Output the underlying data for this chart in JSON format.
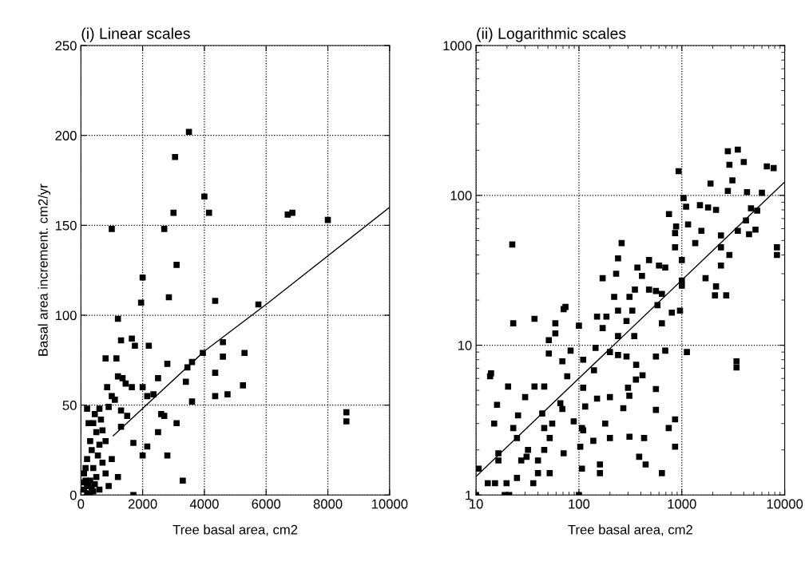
{
  "chart_data": [
    {
      "type": "scatter",
      "title": "(i) Linear scales",
      "xlabel": "Tree basal area, cm2",
      "ylabel": "Basal area increment. cm2/yr",
      "xlim": [
        0,
        10000
      ],
      "ylim": [
        0,
        250
      ],
      "xticks": [
        0,
        2000,
        4000,
        6000,
        8000,
        10000
      ],
      "yticks": [
        0,
        50,
        100,
        150,
        200,
        250
      ],
      "grid": true,
      "marker": "square",
      "series": [
        {
          "color": "#000000",
          "x": [
            3500,
            3050,
            4000,
            4150,
            3000,
            6700,
            6850,
            8000,
            1000,
            2700,
            3100,
            2000,
            1950,
            2850,
            4350,
            5750,
            1200,
            1300,
            1650,
            1750,
            2200,
            4600,
            1150,
            800,
            3950,
            5300,
            2800,
            4600,
            3600,
            3450,
            1200,
            1350,
            1450,
            1650,
            2000,
            4350,
            2500,
            3400,
            5250,
            4350,
            4750,
            2150,
            2350,
            3600,
            1000,
            1100,
            850,
            8600,
            8600,
            200,
            600,
            900,
            1300,
            1500,
            2600,
            2700,
            3100,
            1300,
            2500,
            1700,
            2150,
            2000,
            2800,
            3300,
            1200,
            1700,
            500,
            700,
            400,
            300,
            600,
            800,
            200,
            400,
            500,
            700,
            900,
            100,
            200,
            300,
            100,
            600,
            400,
            200,
            800,
            1000,
            350,
            150,
            250,
            450,
            650,
            550,
            300,
            150,
            250,
            350,
            450,
            100
          ],
          "values": [
            202,
            188,
            166,
            157,
            157,
            156,
            157,
            153,
            148,
            148,
            128,
            121,
            107,
            110,
            108,
            106,
            98,
            86,
            87,
            83,
            83,
            85,
            76,
            76,
            79,
            79,
            73,
            77,
            74,
            71,
            66,
            65,
            62,
            60,
            60,
            68,
            65,
            63,
            61,
            55,
            56,
            55,
            56,
            52,
            55,
            53,
            60,
            46,
            41,
            48,
            48,
            49,
            47,
            44,
            45,
            44,
            40,
            38,
            35,
            29,
            27,
            22,
            22,
            8,
            10,
            0,
            35,
            36,
            40,
            30,
            28,
            30,
            20,
            15,
            10,
            18,
            5,
            3,
            5,
            8,
            12,
            3,
            2,
            1,
            12,
            20,
            25,
            15,
            40,
            45,
            42,
            22,
            0,
            8,
            5,
            4,
            6,
            7
          ]
        },
        {
          "type": "line",
          "color": "#000000",
          "marker": "none",
          "x": [
            1050,
            4000,
            6000,
            10000
          ],
          "values": [
            33,
            80,
            106,
            160
          ]
        }
      ]
    },
    {
      "type": "scatter",
      "title": "(ii) Logarithmic scales",
      "xlabel": "Tree basal area, cm2",
      "log": "xy",
      "xlim": [
        10,
        10000
      ],
      "ylim": [
        1,
        1000
      ],
      "xticks": [
        10,
        100,
        1000,
        10000
      ],
      "yticks": [
        1,
        10,
        100,
        1000
      ],
      "grid": true,
      "marker": "square",
      "series": [
        {
          "color": "#000000",
          "x": [
            2800,
            3500,
            2900,
            4000,
            6700,
            7800,
            930,
            3100,
            2800,
            1900,
            4300,
            6000,
            1040,
            1100,
            750,
            1500,
            1800,
            1150,
            1550,
            2150,
            2400,
            860,
            880,
            1350,
            860,
            1000,
            690,
            2400,
            2900,
            2400,
            3500,
            4200,
            4700,
            5400,
            4500,
            5200,
            8400,
            8400,
            1700,
            2150,
            2100,
            2700,
            1000,
            1000,
            800,
            960,
            640,
            580,
            640,
            260,
            240,
            230,
            170,
            370,
            410,
            480,
            600,
            350,
            480,
            560,
            220,
            310,
            330,
            240,
            290,
            185,
            150,
            170,
            240,
            345,
            240,
            290,
            145,
            100,
            74,
            69,
            51,
            83,
            59,
            77,
            110,
            140,
            200,
            360,
            415,
            560,
            690,
            358,
            300,
            309,
            200,
            150,
            270,
            560,
            560,
            746,
            860,
            860,
            430,
            310,
            200,
            180,
            138,
            110,
            110,
            115,
            107,
            103,
            107,
            160,
            160,
            385,
            445,
            640,
            89,
            69,
            55,
            46,
            52,
            40,
            46,
            32,
            31,
            27.5,
            25,
            23,
            25.6,
            30,
            37,
            44,
            46,
            52,
            66,
            71,
            40,
            36,
            25,
            16.5,
            16.5,
            16,
            15,
            19,
            21,
            19.8,
            13,
            15.3,
            10.6,
            10,
            13.7,
            14,
            20.5,
            23,
            22.5,
            37,
            51,
            59,
            71,
            100,
            3400,
            3400,
            1120
          ],
          "values": [
            197,
            202,
            160,
            167,
            156,
            152,
            145,
            126,
            107,
            120,
            105,
            104,
            96,
            84,
            75,
            86,
            83,
            64,
            58,
            80,
            54,
            56,
            62,
            48,
            45,
            37,
            33,
            45,
            40,
            34,
            58,
            68,
            82,
            79,
            55,
            59,
            45,
            40,
            28,
            24.7,
            21.5,
            21.5,
            27,
            25,
            16.5,
            17,
            22,
            18.5,
            14,
            48,
            38,
            30,
            28,
            33,
            29,
            37,
            34,
            23.5,
            23.5,
            23,
            21,
            21,
            17,
            17,
            14.5,
            15.5,
            15.5,
            13,
            11.5,
            11.5,
            8.6,
            8.4,
            9.6,
            13.5,
            18,
            7.8,
            8.8,
            9.2,
            12,
            6.2,
            8,
            6.8,
            9,
            7.4,
            6.3,
            8.4,
            9.2,
            5.9,
            5.2,
            4.6,
            4.5,
            4.4,
            3.8,
            5.1,
            3.7,
            2.8,
            3.2,
            2.1,
            2.4,
            2.45,
            2.4,
            3,
            2.3,
            2.7,
            5.2,
            3.9,
            2.8,
            2.1,
            1.5,
            1.6,
            1.4,
            1.8,
            1.6,
            1.4,
            3.1,
            3.75,
            3,
            2.8,
            2.4,
            1.7,
            2,
            2,
            1.8,
            1.7,
            2.4,
            2.8,
            3.4,
            4.5,
            5.3,
            3.5,
            5.3,
            1.4,
            4.1,
            1.9,
            1.4,
            1.2,
            1.3,
            1.9,
            1.7,
            4,
            3,
            1,
            1,
            1.2,
            1.2,
            1.2,
            1.5,
            1,
            6.2,
            6.5,
            5.3,
            14,
            47,
            15,
            10.8,
            14,
            17.4,
            1,
            7.8,
            7.1,
            9
          ]
        },
        {
          "type": "line",
          "color": "#000000",
          "marker": "none",
          "x": [
            10,
            10000
          ],
          "values": [
            1.33,
            123
          ]
        }
      ]
    }
  ]
}
